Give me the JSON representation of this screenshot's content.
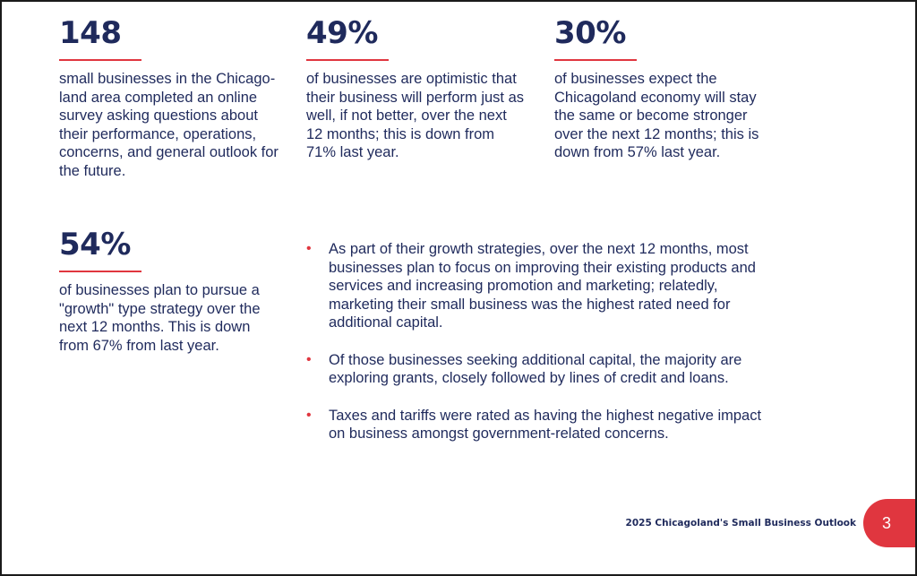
{
  "stats": [
    {
      "number": "148",
      "description": "small businesses in the Chicago-land area completed an online survey asking questions about their performance, operations, concerns, and general outlook for the future."
    },
    {
      "number": "49%",
      "description": "of businesses are optimistic that their business will perform just as well, if not better, over the next 12 months; this is down from 71% last year."
    },
    {
      "number": "30%",
      "description": "of businesses expect the Chicagoland economy will stay the same or become stronger over the next 12 months; this is down from 57% last year."
    },
    {
      "number": "54%",
      "description": "of businesses plan to pursue a \"growth\" type strategy over the next 12 months. This is down from 67% from last year."
    }
  ],
  "bullets": [
    "As part of their growth strategies, over the next 12 months, most businesses plan to focus on improving their existing products and services and increasing promotion and marketing; relatedly, marketing their small business was the highest rated need for additional capital.",
    "Of those businesses seeking additional capital, the majority are exploring grants, closely followed by lines of credit and loans.",
    "Taxes and tariffs were rated as having the highest negative impact on business amongst government-related concerns."
  ],
  "footer": {
    "title": "2025 Chicagoland's Small Business Outlook",
    "page_number": "3"
  },
  "colors": {
    "navy": "#1f2a5c",
    "accent_red": "#e0363f"
  }
}
